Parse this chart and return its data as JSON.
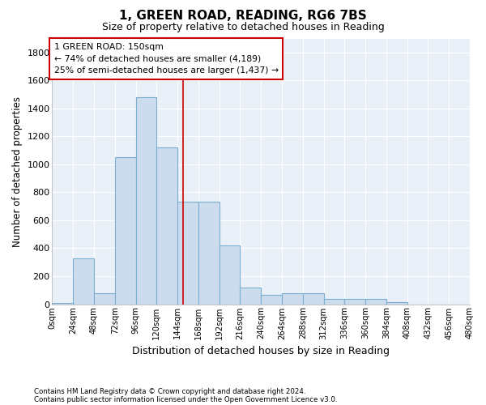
{
  "title1": "1, GREEN ROAD, READING, RG6 7BS",
  "title2": "Size of property relative to detached houses in Reading",
  "xlabel": "Distribution of detached houses by size in Reading",
  "ylabel": "Number of detached properties",
  "bar_color": "#ccdcec",
  "bar_edge_color": "#7aaed0",
  "background_color": "#ffffff",
  "plot_bg_color": "#eaf0f8",
  "grid_color": "#ffffff",
  "bin_labels": [
    "0sqm",
    "24sqm",
    "48sqm",
    "72sqm",
    "96sqm",
    "120sqm",
    "144sqm",
    "168sqm",
    "192sqm",
    "216sqm",
    "240sqm",
    "264sqm",
    "288sqm",
    "312sqm",
    "336sqm",
    "360sqm",
    "384sqm",
    "408sqm",
    "432sqm",
    "456sqm",
    "480sqm"
  ],
  "bin_edges": [
    0,
    24,
    48,
    72,
    96,
    120,
    144,
    168,
    192,
    216,
    240,
    264,
    288,
    312,
    336,
    360,
    384,
    408,
    432,
    456,
    480
  ],
  "bar_heights": [
    10,
    330,
    80,
    1050,
    1480,
    1120,
    730,
    730,
    420,
    120,
    65,
    80,
    80,
    35,
    35,
    35,
    15,
    0,
    0,
    0
  ],
  "vline_x": 150,
  "vline_color": "#cc0000",
  "annotation_text": "1 GREEN ROAD: 150sqm\n← 74% of detached houses are smaller (4,189)\n25% of semi-detached houses are larger (1,437) →",
  "annotation_box_color": "#ffffff",
  "annotation_box_edge": "#cc0000",
  "ylim": [
    0,
    1900
  ],
  "yticks": [
    0,
    200,
    400,
    600,
    800,
    1000,
    1200,
    1400,
    1600,
    1800
  ],
  "footnote1": "Contains HM Land Registry data © Crown copyright and database right 2024.",
  "footnote2": "Contains public sector information licensed under the Open Government Licence v3.0."
}
